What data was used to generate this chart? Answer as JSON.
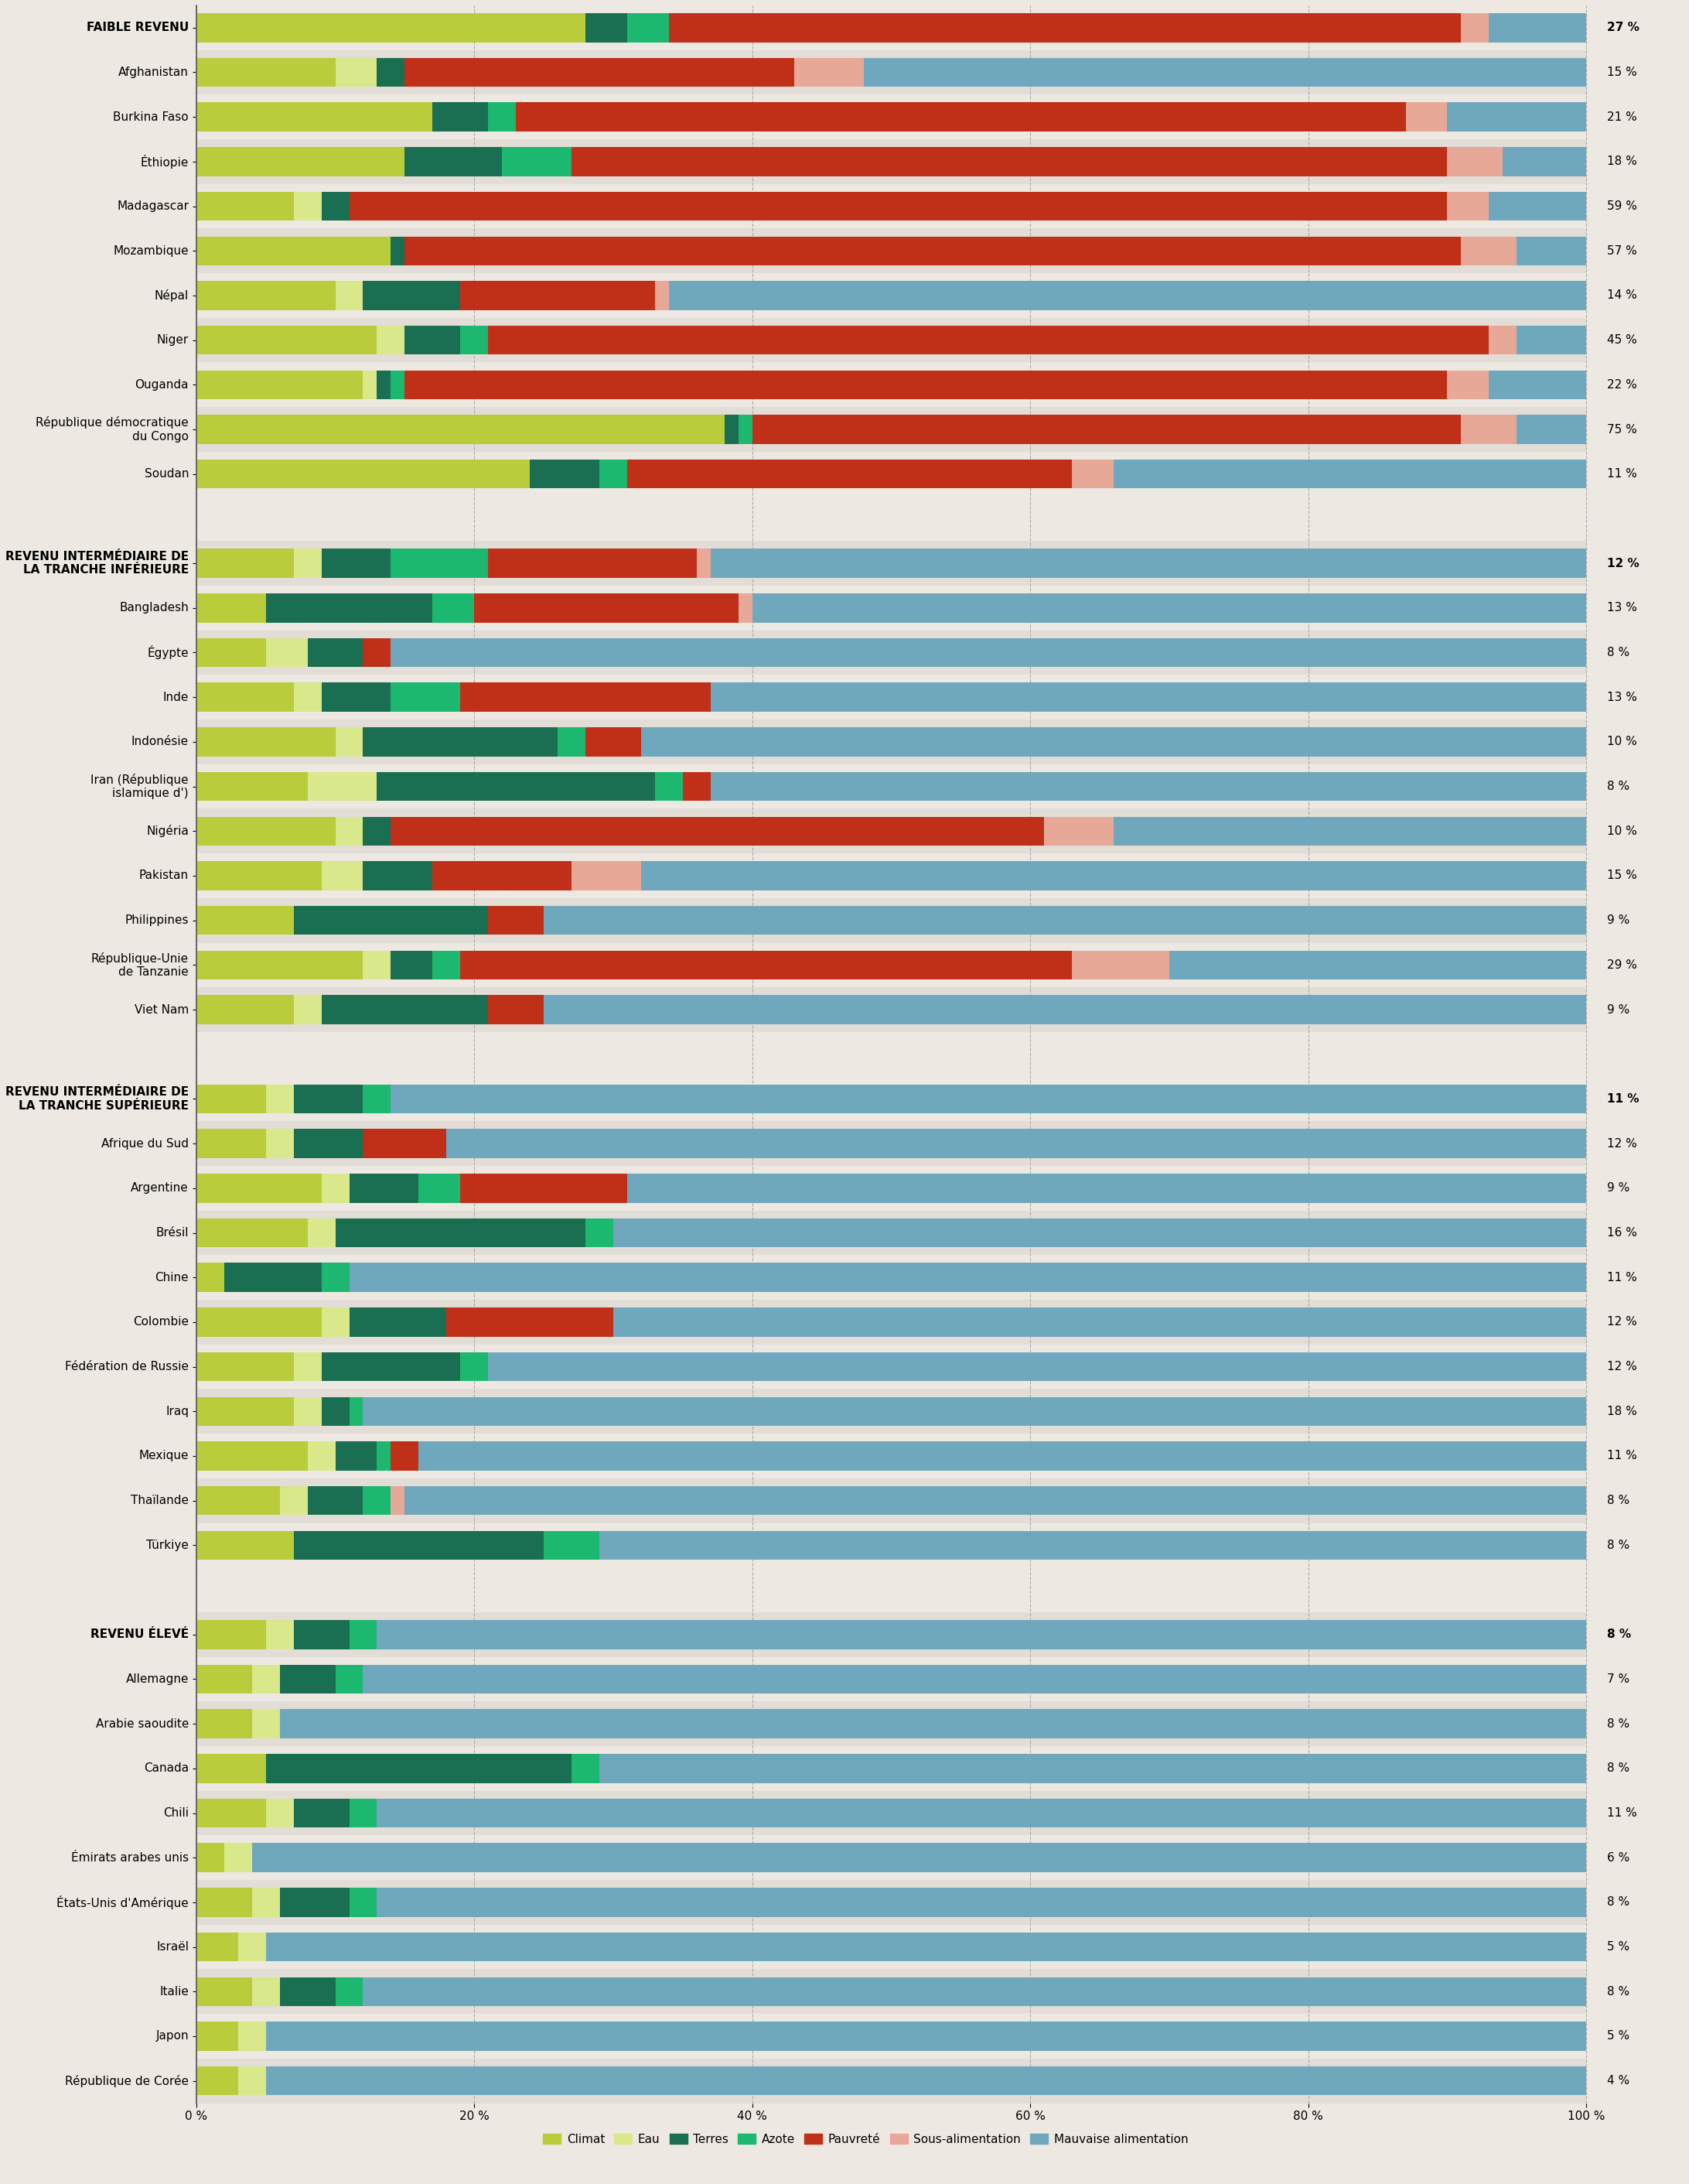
{
  "colors": {
    "Climat": "#b8cc3c",
    "Eau": "#d8e88a",
    "Terres": "#1a6e52",
    "Azote": "#1db870",
    "Pauvreté": "#c03018",
    "Sous-alimentation": "#e8a898",
    "Mauvaise alimentation": "#6fa8bc"
  },
  "legend_labels": [
    "Climat",
    "Eau",
    "Terres",
    "Azote",
    "Pauvreté",
    "Sous-alimentation",
    "Mauvaise alimentation"
  ],
  "bg_light": "#ede9e2",
  "bg_dark": "#e2ddd6",
  "spacer_color": "#d8d3cb",
  "groups": [
    {
      "name": "FAIBLE REVENU",
      "bold": true,
      "pct": "27 %",
      "values": [
        28,
        0,
        3,
        3,
        57,
        2,
        7
      ]
    },
    {
      "name": "Afghanistan",
      "bold": false,
      "pct": "15 %",
      "values": [
        10,
        3,
        2,
        0,
        28,
        5,
        52
      ]
    },
    {
      "name": "Burkina Faso",
      "bold": false,
      "pct": "21 %",
      "values": [
        17,
        0,
        4,
        2,
        64,
        3,
        10
      ]
    },
    {
      "name": "Éthiopie",
      "bold": false,
      "pct": "18 %",
      "values": [
        15,
        0,
        7,
        5,
        63,
        4,
        6
      ]
    },
    {
      "name": "Madagascar",
      "bold": false,
      "pct": "59 %",
      "values": [
        7,
        2,
        2,
        0,
        79,
        3,
        7
      ]
    },
    {
      "name": "Mozambique",
      "bold": false,
      "pct": "57 %",
      "values": [
        14,
        0,
        1,
        0,
        76,
        4,
        5
      ]
    },
    {
      "name": "Népal",
      "bold": false,
      "pct": "14 %",
      "values": [
        10,
        2,
        7,
        0,
        14,
        1,
        66
      ]
    },
    {
      "name": "Niger",
      "bold": false,
      "pct": "45 %",
      "values": [
        13,
        2,
        4,
        2,
        72,
        2,
        5
      ]
    },
    {
      "name": "Ouganda",
      "bold": false,
      "pct": "22 %",
      "values": [
        12,
        1,
        1,
        1,
        75,
        3,
        7
      ]
    },
    {
      "name": "République démocratique\ndu Congo",
      "bold": false,
      "pct": "75 %",
      "values": [
        38,
        0,
        1,
        1,
        51,
        4,
        5
      ]
    },
    {
      "name": "Soudan",
      "bold": false,
      "pct": "11 %",
      "values": [
        24,
        0,
        5,
        2,
        32,
        3,
        34
      ]
    }
  ],
  "groups2": [
    {
      "name": "REVENU INTERMÉDIAIRE DE\nLA TRANCHE INFÉRIEURE",
      "bold": true,
      "pct": "12 %",
      "values": [
        7,
        2,
        5,
        7,
        15,
        1,
        63
      ]
    },
    {
      "name": "Bangladesh",
      "bold": false,
      "pct": "13 %",
      "values": [
        5,
        0,
        12,
        3,
        19,
        1,
        60
      ]
    },
    {
      "name": "Égypte",
      "bold": false,
      "pct": "8 %",
      "values": [
        5,
        3,
        4,
        0,
        2,
        0,
        86
      ]
    },
    {
      "name": "Inde",
      "bold": false,
      "pct": "13 %",
      "values": [
        7,
        2,
        5,
        5,
        18,
        0,
        63
      ]
    },
    {
      "name": "Indonésie",
      "bold": false,
      "pct": "10 %",
      "values": [
        10,
        2,
        14,
        2,
        4,
        0,
        68
      ]
    },
    {
      "name": "Iran (République\nislamique d')",
      "bold": false,
      "pct": "8 %",
      "values": [
        8,
        5,
        20,
        2,
        2,
        0,
        63
      ]
    },
    {
      "name": "Nigéria",
      "bold": false,
      "pct": "10 %",
      "values": [
        10,
        2,
        2,
        0,
        47,
        5,
        34
      ]
    },
    {
      "name": "Pakistan",
      "bold": false,
      "pct": "15 %",
      "values": [
        9,
        3,
        5,
        0,
        10,
        5,
        68
      ]
    },
    {
      "name": "Philippines",
      "bold": false,
      "pct": "9 %",
      "values": [
        7,
        0,
        14,
        0,
        4,
        0,
        75
      ]
    },
    {
      "name": "République-Unie\nde Tanzanie",
      "bold": false,
      "pct": "29 %",
      "values": [
        12,
        2,
        3,
        2,
        44,
        7,
        30
      ]
    },
    {
      "name": "Viet Nam",
      "bold": false,
      "pct": "9 %",
      "values": [
        7,
        2,
        12,
        0,
        4,
        0,
        75
      ]
    }
  ],
  "groups3": [
    {
      "name": "REVENU INTERMÉDIAIRE DE\nLA TRANCHE SUPÉRIEURE",
      "bold": true,
      "pct": "11 %",
      "values": [
        5,
        2,
        5,
        2,
        0,
        0,
        86
      ]
    },
    {
      "name": "Afrique du Sud",
      "bold": false,
      "pct": "12 %",
      "values": [
        5,
        2,
        5,
        0,
        6,
        0,
        82
      ]
    },
    {
      "name": "Argentine",
      "bold": false,
      "pct": "9 %",
      "values": [
        9,
        2,
        5,
        3,
        12,
        0,
        69
      ]
    },
    {
      "name": "Brésil",
      "bold": false,
      "pct": "16 %",
      "values": [
        8,
        2,
        18,
        2,
        0,
        0,
        70
      ]
    },
    {
      "name": "Chine",
      "bold": false,
      "pct": "11 %",
      "values": [
        2,
        0,
        7,
        2,
        0,
        0,
        89
      ]
    },
    {
      "name": "Colombie",
      "bold": false,
      "pct": "12 %",
      "values": [
        9,
        2,
        7,
        0,
        12,
        0,
        70
      ]
    },
    {
      "name": "Fédération de Russie",
      "bold": false,
      "pct": "12 %",
      "values": [
        7,
        2,
        10,
        2,
        0,
        0,
        79
      ]
    },
    {
      "name": "Iraq",
      "bold": false,
      "pct": "18 %",
      "values": [
        7,
        2,
        2,
        1,
        0,
        0,
        88
      ]
    },
    {
      "name": "Mexique",
      "bold": false,
      "pct": "11 %",
      "values": [
        8,
        2,
        3,
        1,
        2,
        0,
        84
      ]
    },
    {
      "name": "Thaïlande",
      "bold": false,
      "pct": "8 %",
      "values": [
        6,
        2,
        4,
        2,
        0,
        1,
        85
      ]
    },
    {
      "name": "Türkiye",
      "bold": false,
      "pct": "8 %",
      "values": [
        7,
        0,
        18,
        4,
        0,
        0,
        71
      ]
    }
  ],
  "groups4": [
    {
      "name": "REVENU ÉLEVÉ",
      "bold": true,
      "pct": "8 %",
      "values": [
        5,
        2,
        4,
        2,
        0,
        0,
        87
      ]
    },
    {
      "name": "Allemagne",
      "bold": false,
      "pct": "7 %",
      "values": [
        4,
        2,
        4,
        2,
        0,
        0,
        88
      ]
    },
    {
      "name": "Arabie saoudite",
      "bold": false,
      "pct": "8 %",
      "values": [
        4,
        2,
        0,
        0,
        0,
        0,
        94
      ]
    },
    {
      "name": "Canada",
      "bold": false,
      "pct": "8 %",
      "values": [
        5,
        0,
        22,
        2,
        0,
        0,
        71
      ]
    },
    {
      "name": "Chili",
      "bold": false,
      "pct": "11 %",
      "values": [
        5,
        2,
        4,
        2,
        0,
        0,
        87
      ]
    },
    {
      "name": "Émirats arabes unis",
      "bold": false,
      "pct": "6 %",
      "values": [
        2,
        2,
        0,
        0,
        0,
        0,
        96
      ]
    },
    {
      "name": "États-Unis d'Amérique",
      "bold": false,
      "pct": "8 %",
      "values": [
        4,
        2,
        5,
        2,
        0,
        0,
        87
      ]
    },
    {
      "name": "Israël",
      "bold": false,
      "pct": "5 %",
      "values": [
        3,
        2,
        0,
        0,
        0,
        0,
        95
      ]
    },
    {
      "name": "Italie",
      "bold": false,
      "pct": "8 %",
      "values": [
        4,
        2,
        4,
        2,
        0,
        0,
        88
      ]
    },
    {
      "name": "Japon",
      "bold": false,
      "pct": "5 %",
      "values": [
        3,
        2,
        0,
        0,
        0,
        0,
        95
      ]
    },
    {
      "name": "République de Corée",
      "bold": false,
      "pct": "4 %",
      "values": [
        3,
        2,
        0,
        0,
        0,
        0,
        95
      ]
    }
  ]
}
